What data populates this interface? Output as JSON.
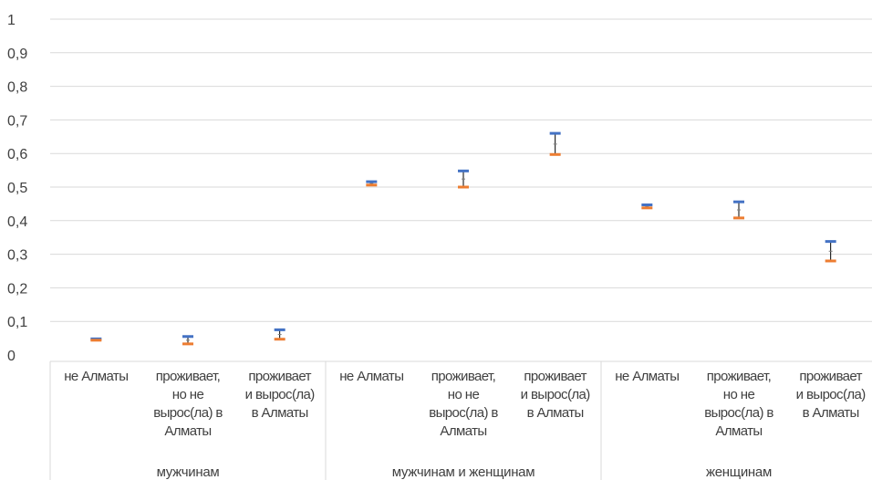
{
  "chart_data": {
    "type": "scatter",
    "subtype": "high-low-close error bars",
    "ylim": [
      0,
      1
    ],
    "yticks": [
      "0",
      "0,1",
      "0,2",
      "0,3",
      "0,4",
      "0,5",
      "0,6",
      "0,7",
      "0,8",
      "0,9",
      "1"
    ],
    "grid": true,
    "groups": [
      {
        "label": "мужчинам",
        "categories": [
          {
            "lines": [
              "не Алматы"
            ],
            "high": 0.048,
            "low": 0.044,
            "mid": 0.046
          },
          {
            "lines": [
              "проживает,",
              "но не",
              "вырос(ла) в",
              "Алматы"
            ],
            "high": 0.055,
            "low": 0.033,
            "mid": 0.044
          },
          {
            "lines": [
              "проживает",
              "и вырос(ла)",
              "в Алматы"
            ],
            "high": 0.075,
            "low": 0.047,
            "mid": 0.061
          }
        ]
      },
      {
        "label": "мужчинам и женщинам",
        "categories": [
          {
            "lines": [
              "не Алматы"
            ],
            "high": 0.516,
            "low": 0.506,
            "mid": 0.511
          },
          {
            "lines": [
              "проживает,",
              "но не",
              "вырос(ла) в",
              "Алматы"
            ],
            "high": 0.548,
            "low": 0.5,
            "mid": 0.524
          },
          {
            "lines": [
              "проживает",
              "и вырос(ла)",
              "в Алматы"
            ],
            "high": 0.66,
            "low": 0.597,
            "mid": 0.628
          }
        ]
      },
      {
        "label": "женщинам",
        "categories": [
          {
            "lines": [
              "не Алматы"
            ],
            "high": 0.447,
            "low": 0.438,
            "mid": 0.442
          },
          {
            "lines": [
              "проживает,",
              "но не",
              "вырос(ла) в",
              "Алматы"
            ],
            "high": 0.456,
            "low": 0.408,
            "mid": 0.432
          },
          {
            "lines": [
              "проживает",
              "и вырос(ла)",
              "в Алматы"
            ],
            "high": 0.338,
            "low": 0.28,
            "mid": 0.309
          }
        ]
      }
    ],
    "colors": {
      "high": "#4472C4",
      "low": "#ED7D31",
      "whisker": "#000000",
      "grid": "#D9D9D9",
      "axis_text": "#404040"
    }
  }
}
